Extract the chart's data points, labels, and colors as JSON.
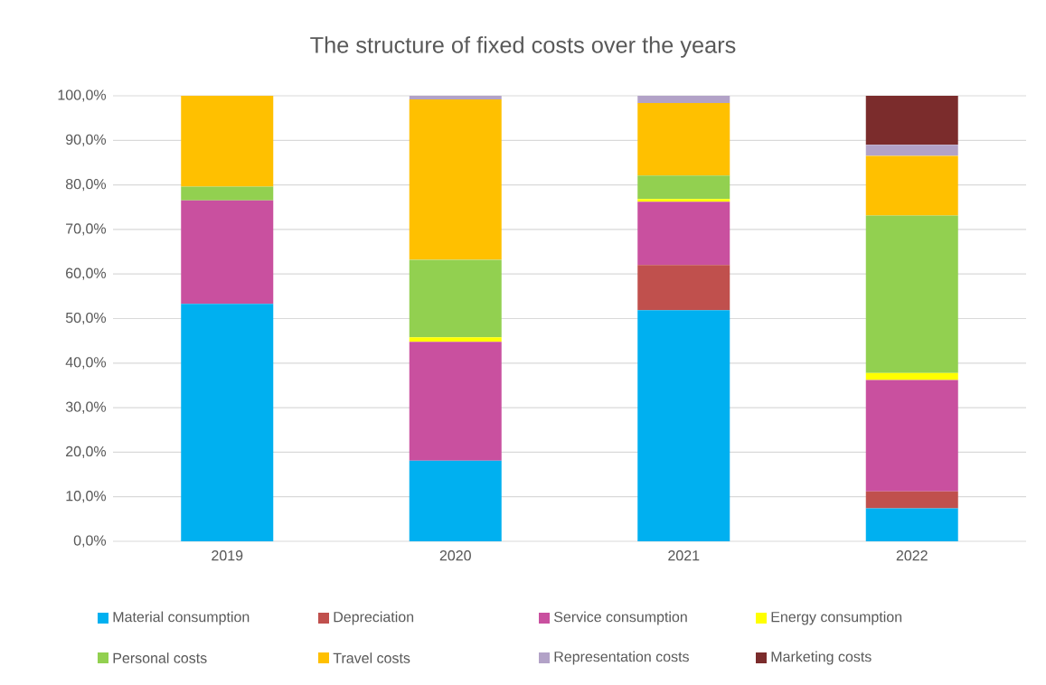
{
  "chart_data": {
    "type": "bar",
    "title": "The structure of fixed costs over the years",
    "stacked": true,
    "grid": "y",
    "legend": "bottom",
    "categories": [
      "2019",
      "2020",
      "2021",
      "2022"
    ],
    "ylim": [
      0,
      100
    ],
    "yticks": [
      {
        "value": 0,
        "label": "0,0%"
      },
      {
        "value": 10,
        "label": "10,0%"
      },
      {
        "value": 20,
        "label": "20,0%"
      },
      {
        "value": 30,
        "label": "30,0%"
      },
      {
        "value": 40,
        "label": "40,0%"
      },
      {
        "value": 50,
        "label": "50,0%"
      },
      {
        "value": 60,
        "label": "60,0%"
      },
      {
        "value": 70,
        "label": "70,0%"
      },
      {
        "value": 80,
        "label": "80,0%"
      },
      {
        "value": 90,
        "label": "90,0%"
      },
      {
        "value": 100,
        "label": "100,0%"
      }
    ],
    "series": [
      {
        "name": "Material consumption",
        "color": "#00b0f0",
        "values": [
          53.3,
          18.1,
          51.9,
          7.4
        ]
      },
      {
        "name": "Depreciation",
        "color": "#c0504d",
        "values": [
          0,
          0,
          10.1,
          3.8
        ]
      },
      {
        "name": "Service consumption",
        "color": "#c9509f",
        "values": [
          23.2,
          26.7,
          14.2,
          25.0
        ]
      },
      {
        "name": "Energy consumption",
        "color": "#ffff00",
        "values": [
          0,
          1.0,
          0.6,
          1.6
        ]
      },
      {
        "name": "Personal costs",
        "color": "#92d050",
        "values": [
          3.1,
          17.4,
          5.3,
          35.3
        ]
      },
      {
        "name": "Travel costs",
        "color": "#ffc000",
        "values": [
          20.4,
          36.0,
          16.3,
          13.4
        ]
      },
      {
        "name": "Representation costs",
        "color": "#b2a2c7",
        "values": [
          0,
          0.8,
          1.6,
          2.5
        ]
      },
      {
        "name": "Marketing costs",
        "color": "#7b2c2c",
        "values": [
          0,
          0,
          0,
          11.0
        ]
      }
    ]
  }
}
